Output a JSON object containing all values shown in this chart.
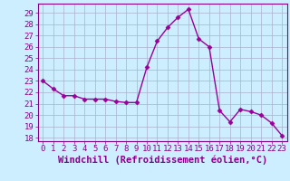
{
  "x": [
    0,
    1,
    2,
    3,
    4,
    5,
    6,
    7,
    8,
    9,
    10,
    11,
    12,
    13,
    14,
    15,
    16,
    17,
    18,
    19,
    20,
    21,
    22,
    23
  ],
  "y": [
    23.0,
    22.3,
    21.7,
    21.7,
    21.4,
    21.4,
    21.4,
    21.2,
    21.1,
    21.1,
    24.2,
    26.5,
    27.7,
    28.6,
    29.3,
    26.7,
    26.0,
    20.4,
    19.4,
    20.5,
    20.3,
    20.0,
    19.3,
    18.2
  ],
  "color": "#990099",
  "marker": "D",
  "markersize": 2.5,
  "linewidth": 1.0,
  "xlim": [
    -0.5,
    23.5
  ],
  "ylim": [
    17.7,
    29.8
  ],
  "yticks": [
    18,
    19,
    20,
    21,
    22,
    23,
    24,
    25,
    26,
    27,
    28,
    29
  ],
  "xticks": [
    0,
    1,
    2,
    3,
    4,
    5,
    6,
    7,
    8,
    9,
    10,
    11,
    12,
    13,
    14,
    15,
    16,
    17,
    18,
    19,
    20,
    21,
    22,
    23
  ],
  "xlabel": "Windchill (Refroidissement éolien,°C)",
  "bg_color": "#cceeff",
  "grid_color": "#aab0cc",
  "line_color": "#880088",
  "tick_fontsize": 6.5,
  "xlabel_fontsize": 7.5
}
